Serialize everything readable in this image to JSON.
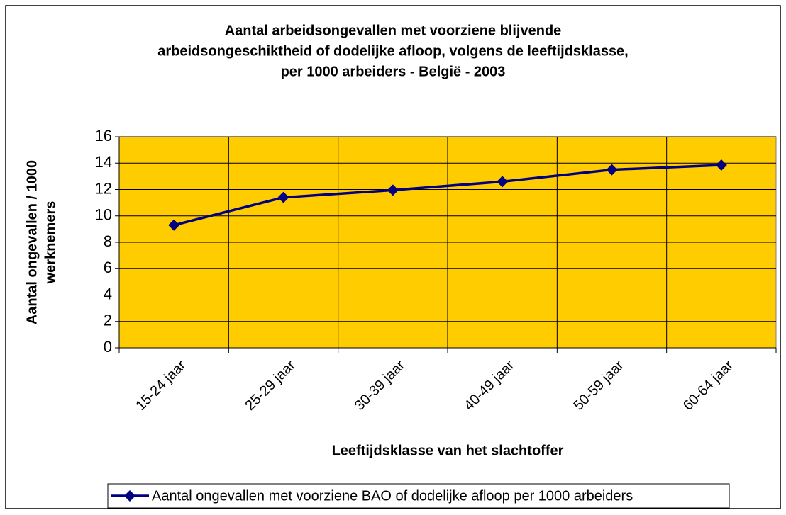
{
  "chart_data": {
    "type": "line",
    "title": [
      "Aantal arbeidsongevallen met voorziene blijvende",
      "arbeidsongeschiktheid of dodelijke afloop, volgens de leeftijdsklasse,",
      "per 1000 arbeiders - België - 2003"
    ],
    "x_label": "Leeftijdsklasse van het slachtoffer",
    "y_label": [
      "Aantal ongevallen / 1000",
      "werknemers"
    ],
    "categories": [
      "15-24 jaar",
      "25-29 jaar",
      "30-39 jaar",
      "40-49 jaar",
      "50-59 jaar",
      "60-64 jaar"
    ],
    "series": [
      {
        "name": "Aantal ongevallen met voorziene BAO of dodelijke afloop per 1000 arbeiders",
        "color": "#000080",
        "values": [
          9.3,
          11.4,
          11.95,
          12.6,
          13.5,
          13.85
        ]
      }
    ],
    "ylim": [
      0,
      16
    ],
    "yticks": [
      0,
      2,
      4,
      6,
      8,
      10,
      12,
      14,
      16
    ],
    "grid": true,
    "plot_background": "#ffcc00",
    "legend": "bottom"
  }
}
